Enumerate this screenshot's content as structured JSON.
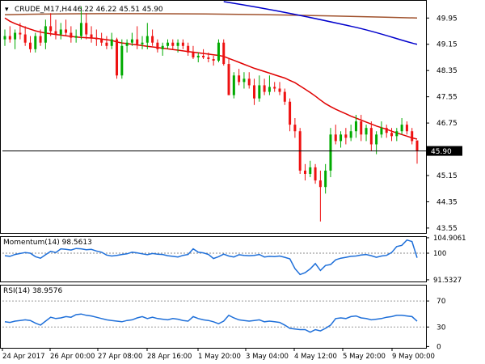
{
  "chart_data": [
    {
      "type": "candlestick",
      "title": "CRUDE_M17,H4  46.22 46.22 45.51 45.90",
      "symbol_title": "CRUDE_M17,H4",
      "ohlc_text": "46.22 46.22 45.51 45.90",
      "y_ticks": [
        "49.95",
        "49.15",
        "48.35",
        "47.55",
        "46.75",
        "45.15",
        "44.35",
        "43.55"
      ],
      "ylim": [
        43.4,
        50.45
      ],
      "current_price": 45.9,
      "current_price_label": "45.90",
      "colors": {
        "bull": "#00aa00",
        "bear": "#ee1111",
        "sma_fast": "#e00000",
        "sma_mid": "#0000cc",
        "sma_slow": "#a0522d"
      },
      "candles": [
        [
          49.3,
          49.6,
          49.1,
          49.4
        ],
        [
          49.4,
          49.7,
          49.2,
          49.3
        ],
        [
          49.3,
          49.6,
          49.0,
          49.5
        ],
        [
          49.5,
          49.8,
          49.3,
          49.45
        ],
        [
          49.45,
          49.7,
          49.1,
          49.2
        ],
        [
          49.2,
          49.4,
          48.9,
          49.0
        ],
        [
          49.0,
          49.5,
          48.9,
          49.4
        ],
        [
          49.4,
          49.6,
          49.1,
          49.2
        ],
        [
          49.2,
          49.9,
          49.0,
          49.7
        ],
        [
          49.7,
          50.1,
          49.4,
          49.55
        ],
        [
          49.55,
          49.9,
          49.3,
          49.45
        ],
        [
          49.45,
          49.8,
          49.3,
          49.6
        ],
        [
          49.6,
          49.9,
          49.4,
          49.5
        ],
        [
          49.5,
          49.7,
          49.2,
          49.35
        ],
        [
          49.35,
          49.6,
          49.2,
          49.4
        ],
        [
          49.4,
          50.3,
          49.3,
          49.8
        ],
        [
          49.8,
          50.1,
          49.3,
          49.45
        ],
        [
          49.45,
          49.7,
          49.2,
          49.35
        ],
        [
          49.35,
          49.6,
          49.1,
          49.3
        ],
        [
          49.3,
          49.5,
          49.1,
          49.2
        ],
        [
          49.2,
          49.4,
          49.0,
          49.1
        ],
        [
          49.1,
          49.5,
          49.0,
          49.3
        ],
        [
          49.3,
          49.35,
          48.1,
          48.2
        ],
        [
          48.2,
          49.3,
          48.1,
          49.1
        ],
        [
          49.1,
          49.3,
          48.9,
          49.2
        ],
        [
          49.2,
          49.5,
          49.1,
          49.3
        ],
        [
          49.3,
          49.7,
          49.0,
          49.15
        ],
        [
          49.15,
          49.4,
          49.0,
          49.2
        ],
        [
          49.2,
          49.8,
          49.0,
          49.4
        ],
        [
          49.4,
          49.6,
          49.1,
          49.2
        ],
        [
          49.2,
          49.3,
          48.9,
          49.0
        ],
        [
          49.0,
          49.2,
          48.8,
          49.1
        ],
        [
          49.1,
          49.3,
          49.0,
          49.2
        ],
        [
          49.2,
          49.3,
          49.0,
          49.1
        ],
        [
          49.1,
          49.3,
          48.9,
          49.2
        ],
        [
          49.2,
          49.3,
          49.0,
          49.1
        ],
        [
          49.1,
          49.2,
          48.8,
          48.9
        ],
        [
          48.9,
          49.1,
          48.7,
          48.75
        ],
        [
          48.75,
          48.9,
          48.6,
          48.8
        ],
        [
          48.8,
          49.0,
          48.7,
          48.75
        ],
        [
          48.75,
          48.9,
          48.6,
          48.7
        ],
        [
          48.7,
          48.8,
          48.5,
          48.65
        ],
        [
          48.65,
          49.3,
          48.6,
          49.2
        ],
        [
          49.2,
          49.3,
          48.5,
          48.55
        ],
        [
          48.55,
          48.7,
          47.6,
          47.6
        ],
        [
          47.6,
          48.3,
          47.5,
          48.2
        ],
        [
          48.2,
          48.4,
          47.9,
          48.0
        ],
        [
          48.0,
          48.3,
          47.8,
          48.1
        ],
        [
          48.1,
          48.3,
          47.8,
          47.9
        ],
        [
          47.9,
          48.1,
          47.3,
          47.5
        ],
        [
          47.5,
          48.2,
          47.4,
          47.9
        ],
        [
          47.9,
          48.1,
          47.6,
          47.7
        ],
        [
          47.7,
          48.2,
          47.6,
          47.85
        ],
        [
          47.85,
          48.0,
          47.7,
          47.8
        ],
        [
          47.8,
          48.0,
          47.6,
          47.7
        ],
        [
          47.7,
          47.8,
          47.3,
          47.4
        ],
        [
          47.4,
          47.5,
          46.5,
          46.7
        ],
        [
          46.7,
          46.9,
          46.3,
          46.5
        ],
        [
          46.5,
          46.6,
          45.2,
          45.3
        ],
        [
          45.3,
          45.5,
          45.0,
          45.2
        ],
        [
          45.2,
          45.6,
          45.1,
          45.4
        ],
        [
          45.4,
          45.5,
          44.9,
          45.0
        ],
        [
          45.0,
          45.3,
          43.75,
          44.8
        ],
        [
          44.8,
          45.5,
          44.6,
          45.3
        ],
        [
          45.3,
          46.6,
          45.1,
          46.4
        ],
        [
          46.4,
          46.7,
          46.1,
          46.2
        ],
        [
          46.2,
          46.5,
          46.0,
          46.4
        ],
        [
          46.4,
          46.6,
          46.1,
          46.3
        ],
        [
          46.3,
          46.7,
          46.2,
          46.5
        ],
        [
          46.5,
          47.0,
          46.3,
          46.8
        ],
        [
          46.8,
          47.0,
          46.2,
          46.4
        ],
        [
          46.4,
          46.7,
          46.2,
          46.6
        ],
        [
          46.6,
          46.8,
          45.9,
          46.1
        ],
        [
          46.1,
          46.5,
          45.8,
          46.4
        ],
        [
          46.4,
          46.8,
          46.3,
          46.6
        ],
        [
          46.6,
          46.7,
          46.3,
          46.45
        ],
        [
          46.45,
          46.6,
          46.2,
          46.35
        ],
        [
          46.35,
          46.6,
          46.2,
          46.5
        ],
        [
          46.5,
          46.9,
          46.4,
          46.7
        ],
        [
          46.7,
          46.8,
          46.4,
          46.5
        ],
        [
          46.5,
          46.6,
          46.1,
          46.2
        ],
        [
          46.22,
          46.22,
          45.51,
          45.9
        ]
      ],
      "sma_fast": [
        49.95,
        49.85,
        49.78,
        49.72,
        49.66,
        49.61,
        49.56,
        49.52,
        49.49,
        49.47,
        49.45,
        49.43,
        49.41,
        49.39,
        49.37,
        49.36,
        49.35,
        49.34,
        49.33,
        49.31,
        49.29,
        49.27,
        49.22,
        49.19,
        49.17,
        49.15,
        49.13,
        49.11,
        49.09,
        49.07,
        49.05,
        49.03,
        49.01,
        48.99,
        48.97,
        48.95,
        48.93,
        48.91,
        48.89,
        48.87,
        48.85,
        48.83,
        48.81,
        48.78,
        48.72,
        48.66,
        48.6,
        48.54,
        48.48,
        48.42,
        48.37,
        48.32,
        48.27,
        48.22,
        48.17,
        48.12,
        48.05,
        47.98,
        47.88,
        47.78,
        47.68,
        47.57,
        47.45,
        47.34,
        47.25,
        47.17,
        47.1,
        47.03,
        46.96,
        46.9,
        46.84,
        46.78,
        46.72,
        46.66,
        46.61,
        46.56,
        46.5,
        46.45,
        46.4,
        46.35,
        46.3,
        46.26
      ],
      "sma_mid": [
        null,
        null,
        null,
        null,
        null,
        null,
        null,
        null,
        null,
        null,
        null,
        null,
        null,
        null,
        null,
        null,
        null,
        null,
        null,
        null,
        null,
        null,
        null,
        null,
        null,
        null,
        null,
        null,
        null,
        null,
        null,
        null,
        null,
        null,
        null,
        null,
        null,
        null,
        null,
        null,
        null,
        null,
        null,
        null,
        null,
        null,
        null,
        null,
        null,
        null,
        null,
        null,
        null,
        null,
        null,
        null,
        null,
        null,
        null,
        null,
        null,
        null,
        null,
        null,
        null,
        null,
        null,
        null,
        null,
        null,
        null,
        null,
        null,
        null,
        null,
        null,
        null,
        null,
        null,
        null,
        null,
        null
      ],
      "sma_mid_segment": {
        "start": [
          50.45,
          43
        ],
        "end": [
          49.15,
          81
        ]
      },
      "sma_slow": {
        "start": [
          50.05,
          0
        ],
        "mid": [
          50.1,
          35
        ],
        "end": [
          49.95,
          81
        ]
      }
    },
    {
      "type": "line",
      "title": "Momentum(14) 98.5613",
      "name": "Momentum(14)",
      "value_label": "98.5613",
      "y_ticks": [
        "104.9061",
        "100",
        "91.5327"
      ],
      "ylim": [
        91.0,
        105.4
      ],
      "reference_level": 100,
      "color": "#1e6fd9",
      "values": [
        99.2,
        99.0,
        99.6,
        99.9,
        100.2,
        100.0,
        98.9,
        98.4,
        99.5,
        100.6,
        100.2,
        101.4,
        101.2,
        101.0,
        101.5,
        101.4,
        101.1,
        101.2,
        100.7,
        100.3,
        99.4,
        99.1,
        99.3,
        99.6,
        99.8,
        100.3,
        100.1,
        99.8,
        99.5,
        99.9,
        99.7,
        99.6,
        99.2,
        99.0,
        98.8,
        99.3,
        99.6,
        101.4,
        100.3,
        100.1,
        99.6,
        98.3,
        98.9,
        99.7,
        99.1,
        98.8,
        99.5,
        99.3,
        99.2,
        99.3,
        99.6,
        98.8,
        99.0,
        98.9,
        99.1,
        98.7,
        98.2,
        95.1,
        93.2,
        93.8,
        95.0,
        96.7,
        94.5,
        96.1,
        96.4,
        97.9,
        98.4,
        98.7,
        99.0,
        99.1,
        99.4,
        99.6,
        99.2,
        98.7,
        99.1,
        99.3,
        100.2,
        102.1,
        102.5,
        104.2,
        103.7,
        98.56
      ]
    },
    {
      "type": "line",
      "title": "RSI(14) 38.9576",
      "name": "RSI(14)",
      "value_label": "38.9576",
      "y_ticks": [
        "70",
        "30",
        "0"
      ],
      "ylim": [
        -2,
        95
      ],
      "levels": [
        70,
        30
      ],
      "color": "#1e6fd9",
      "values": [
        38,
        37,
        39,
        40,
        41,
        40,
        36,
        33,
        39,
        45,
        43,
        44,
        46,
        45,
        49,
        50,
        48,
        47,
        45,
        43,
        41,
        40,
        39,
        38,
        40,
        41,
        44,
        46,
        43,
        45,
        43,
        42,
        41,
        43,
        42,
        40,
        39,
        46,
        43,
        41,
        40,
        38,
        35,
        39,
        48,
        44,
        41,
        40,
        39,
        40,
        41,
        38,
        39,
        38,
        37,
        33,
        28,
        27,
        26,
        26,
        22,
        26,
        24,
        28,
        33,
        43,
        44,
        43,
        46,
        47,
        44,
        43,
        41,
        42,
        43,
        45,
        46,
        48,
        48,
        47,
        46,
        38.96
      ]
    },
    {
      "type": "time-axis",
      "x_labels": [
        "24 Apr 2017",
        "26 Apr 00:00",
        "27 Apr 08:00",
        "28 Apr 16:00",
        "1 May 20:00",
        "3 May 04:00",
        "4 May 12:00",
        "5 May 20:00",
        "9 May 00:00"
      ]
    }
  ]
}
